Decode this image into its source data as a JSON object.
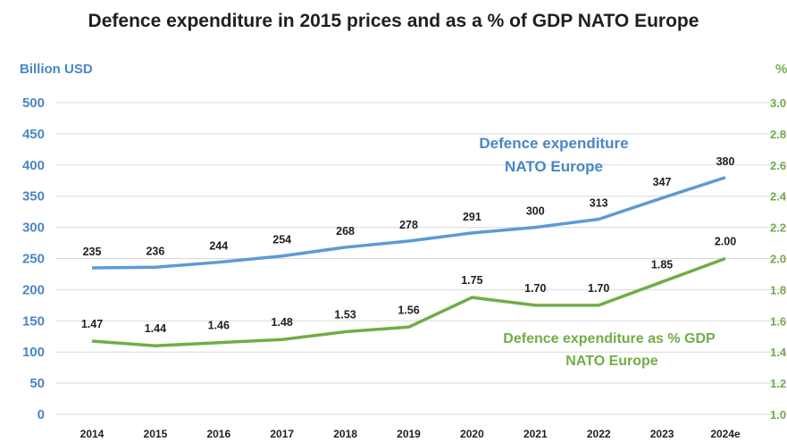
{
  "chart_data": {
    "type": "line",
    "title": "Defence expenditure in 2015 prices and as a % of GDP NATO Europe",
    "categories": [
      "2014",
      "2015",
      "2016",
      "2017",
      "2018",
      "2019",
      "2020",
      "2021",
      "2022",
      "2023",
      "2024e"
    ],
    "series": [
      {
        "name": "Defence expenditure NATO Europe",
        "axis": "left",
        "color": "#5b9bd5",
        "values": [
          235,
          236,
          244,
          254,
          268,
          278,
          291,
          300,
          313,
          347,
          380
        ],
        "labels": [
          "235",
          "236",
          "244",
          "254",
          "268",
          "278",
          "291",
          "300",
          "313",
          "347",
          "380"
        ]
      },
      {
        "name": "Defence expenditure as % GDP NATO Europe",
        "axis": "right",
        "color": "#70ad47",
        "values": [
          1.47,
          1.44,
          1.46,
          1.48,
          1.53,
          1.56,
          1.75,
          1.7,
          1.7,
          1.85,
          2.0
        ],
        "labels": [
          "1.47",
          "1.44",
          "1.46",
          "1.48",
          "1.53",
          "1.56",
          "1.75",
          "1.70",
          "1.70",
          "1.85",
          "2.00"
        ]
      }
    ],
    "y_left": {
      "label": "Billion USD",
      "range": [
        0,
        500
      ],
      "ticks": [
        "0",
        "50",
        "100",
        "150",
        "200",
        "250",
        "300",
        "350",
        "400",
        "450",
        "500"
      ]
    },
    "y_right": {
      "label": "%",
      "range": [
        1.0,
        3.0
      ],
      "ticks": [
        "1.0",
        "1.2",
        "1.4",
        "1.6",
        "1.8",
        "2.0",
        "2.2",
        "2.4",
        "2.6",
        "2.8",
        "3.0"
      ]
    },
    "annotations": {
      "blue": [
        "Defence expenditure",
        "NATO Europe"
      ],
      "green": [
        "Defence expenditure as % GDP",
        "NATO Europe"
      ]
    },
    "grid": true,
    "legend": "none"
  }
}
